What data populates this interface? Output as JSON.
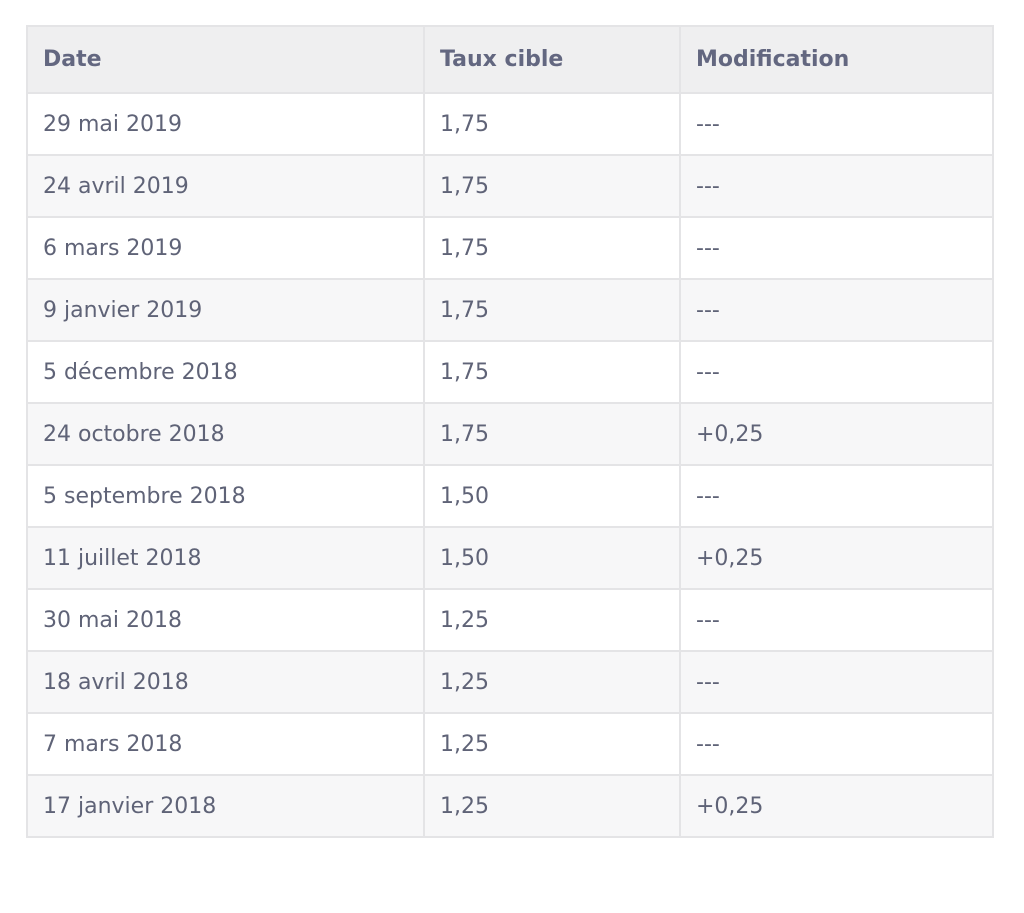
{
  "table": {
    "headers": [
      "Date",
      "Taux cible",
      "Modification"
    ],
    "rows": [
      [
        "29 mai 2019",
        "1,75",
        "---"
      ],
      [
        "24 avril 2019",
        "1,75",
        "---"
      ],
      [
        "6 mars 2019",
        "1,75",
        "---"
      ],
      [
        "9 janvier 2019",
        "1,75",
        "---"
      ],
      [
        "5 décembre 2018",
        "1,75",
        "---"
      ],
      [
        "24 octobre 2018",
        "1,75",
        "+0,25"
      ],
      [
        "5 septembre 2018",
        "1,50",
        "---"
      ],
      [
        "11 juillet 2018",
        "1,50",
        "+0,25"
      ],
      [
        "30 mai 2018",
        "1,25",
        "---"
      ],
      [
        "18 avril 2018",
        "1,25",
        "---"
      ],
      [
        "7 mars 2018",
        "1,25",
        "---"
      ],
      [
        "17 janvier 2018",
        "1,25",
        "+0,25"
      ]
    ]
  }
}
